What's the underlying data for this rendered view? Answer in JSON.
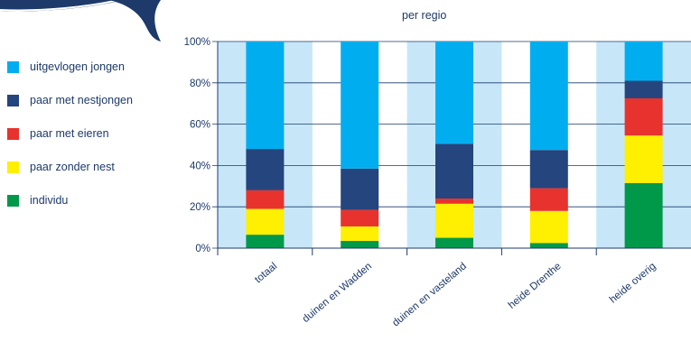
{
  "chart_data": {
    "type": "bar",
    "stacked": true,
    "title": "per regio",
    "xlabel": "",
    "ylabel": "",
    "ylim": [
      0,
      100
    ],
    "yticks": [
      "0%",
      "20%",
      "40%",
      "60%",
      "80%",
      "100%"
    ],
    "categories": [
      "totaal",
      "duinen en Wadden",
      "duinen en vasteland",
      "heide Drenthe",
      "heide overig"
    ],
    "legend_position": "left",
    "background_bands": true,
    "series": [
      {
        "name": "individu",
        "color": "#00994a",
        "values": [
          6.5,
          3.5,
          5,
          2.5,
          31.5
        ]
      },
      {
        "name": "paar zonder nest",
        "color": "#ffef00",
        "values": [
          12.5,
          7,
          16.5,
          15.5,
          23
        ]
      },
      {
        "name": "paar met eieren",
        "color": "#e8322d",
        "values": [
          9,
          8,
          2.5,
          11,
          18
        ]
      },
      {
        "name": "paar met nestjongen",
        "color": "#24457d",
        "values": [
          20,
          20,
          26.5,
          18.5,
          8.5
        ]
      },
      {
        "name": "uitgevlogen jongen",
        "color": "#00aeef",
        "values": [
          52,
          61.5,
          49.5,
          52.5,
          19
        ]
      }
    ]
  },
  "colors": {
    "band_light": "#c7e7f9",
    "axis": "#1d3a6b",
    "decoration": "#1d3a6b"
  },
  "legend_order": [
    4,
    3,
    2,
    1,
    0
  ]
}
